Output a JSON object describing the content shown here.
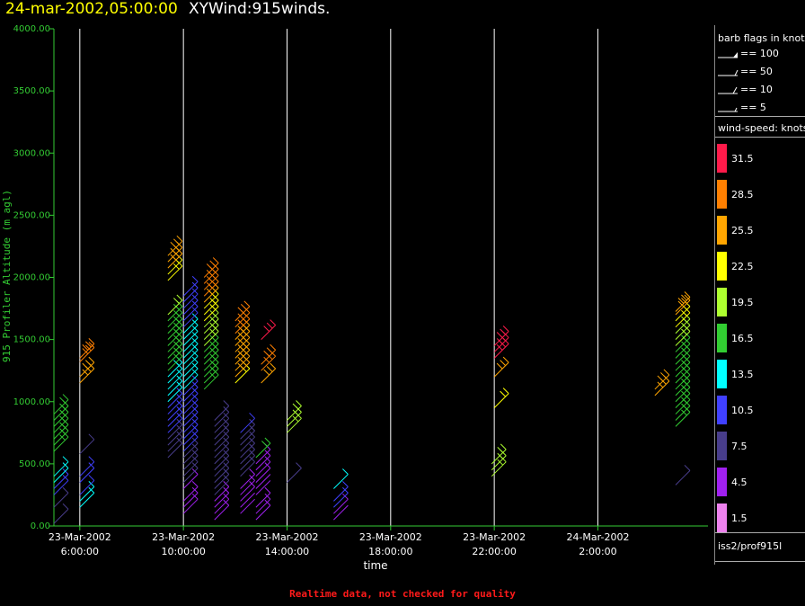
{
  "header": {
    "date_title": "24-mar-2002,05:00:00",
    "plot_title": "XYWind:915winds."
  },
  "legend": {
    "barb_title": "barb flags in knots",
    "barb_items": [
      "== 100",
      "== 50",
      "== 10",
      "== 5"
    ],
    "speed_title": "wind-speed: knots",
    "source_label": "iss2/prof915l"
  },
  "footer": {
    "note": "Realtime data, not checked for quality"
  },
  "colors": {
    "axis": "#33cc33",
    "grid": "#ffffff",
    "text": "#ffffff",
    "title_date": "#ffff00",
    "note": "#ff1a1a"
  },
  "chart_data": {
    "type": "wind-barb time-height",
    "ylabel": "915 Profiler Altitude (m agl)",
    "xlabel": "time",
    "ylim": [
      0,
      4000
    ],
    "yticks": [
      "0.00",
      "500.00",
      "1000.00",
      "1500.00",
      "2000.00",
      "2500.00",
      "3000.00",
      "3500.00",
      "4000.00"
    ],
    "xticks": [
      {
        "hour": 6,
        "date": "23-Mar-2002",
        "time": "6:00:00"
      },
      {
        "hour": 10,
        "date": "23-Mar-2002",
        "time": "10:00:00"
      },
      {
        "hour": 14,
        "date": "23-Mar-2002",
        "time": "14:00:00"
      },
      {
        "hour": 18,
        "date": "23-Mar-2002",
        "time": "18:00:00"
      },
      {
        "hour": 22,
        "date": "23-Mar-2002",
        "time": "22:00:00"
      },
      {
        "hour": 26,
        "date": "24-Mar-2002",
        "time": "2:00:00"
      }
    ],
    "xlim_hours": [
      5.0,
      30.25
    ],
    "color_scale": [
      {
        "label": "1.5",
        "color": "#ee82ee"
      },
      {
        "label": "4.5",
        "color": "#a020f0"
      },
      {
        "label": "7.5",
        "color": "#483d8b"
      },
      {
        "label": "10.5",
        "color": "#4040ff"
      },
      {
        "label": "13.5",
        "color": "#00ffff"
      },
      {
        "label": "16.5",
        "color": "#32cd32"
      },
      {
        "label": "19.5",
        "color": "#adff2f"
      },
      {
        "label": "22.5",
        "color": "#ffff00"
      },
      {
        "label": "25.5",
        "color": "#ffa500"
      },
      {
        "label": "28.5",
        "color": "#ff7f00"
      },
      {
        "label": "31.5",
        "color": "#ff1a4a"
      }
    ],
    "profiles": [
      {
        "hour": 5.0,
        "rows": [
          [
            20,
            7
          ],
          [
            150,
            8
          ],
          [
            250,
            12
          ],
          [
            300,
            12
          ],
          [
            350,
            13
          ],
          [
            400,
            13
          ],
          [
            600,
            17
          ],
          [
            650,
            17
          ],
          [
            700,
            18
          ],
          [
            750,
            18
          ],
          [
            800,
            18
          ],
          [
            850,
            18
          ],
          [
            900,
            18
          ]
        ]
      },
      {
        "hour": 6.0,
        "rows": [
          [
            150,
            14
          ],
          [
            200,
            13
          ],
          [
            250,
            12
          ],
          [
            350,
            12
          ],
          [
            400,
            12
          ],
          [
            580,
            9
          ],
          [
            1150,
            27
          ],
          [
            1200,
            27
          ],
          [
            1320,
            30
          ],
          [
            1350,
            30
          ]
        ]
      },
      {
        "hour": 9.4,
        "rows": [
          [
            550,
            7
          ],
          [
            600,
            8
          ],
          [
            650,
            9
          ],
          [
            700,
            9
          ],
          [
            750,
            10
          ],
          [
            800,
            11
          ],
          [
            850,
            11
          ],
          [
            900,
            11
          ],
          [
            950,
            12
          ],
          [
            1000,
            13
          ],
          [
            1050,
            13
          ],
          [
            1100,
            14
          ],
          [
            1150,
            14
          ],
          [
            1200,
            15
          ],
          [
            1250,
            16
          ],
          [
            1300,
            16
          ],
          [
            1350,
            17
          ],
          [
            1400,
            17
          ],
          [
            1450,
            17
          ],
          [
            1500,
            17
          ],
          [
            1550,
            17
          ],
          [
            1600,
            18
          ],
          [
            1650,
            18
          ],
          [
            1700,
            19
          ],
          [
            1975,
            23
          ],
          [
            2025,
            24
          ],
          [
            2075,
            25
          ],
          [
            2125,
            25
          ],
          [
            2175,
            25
          ]
        ]
      },
      {
        "hour": 10.0,
        "rows": [
          [
            100,
            5
          ],
          [
            150,
            5
          ],
          [
            200,
            6
          ],
          [
            300,
            6
          ],
          [
            350,
            7
          ],
          [
            400,
            8
          ],
          [
            450,
            8
          ],
          [
            500,
            9
          ],
          [
            550,
            9
          ],
          [
            600,
            10
          ],
          [
            650,
            10
          ],
          [
            700,
            11
          ],
          [
            750,
            11
          ],
          [
            800,
            11
          ],
          [
            850,
            11
          ],
          [
            900,
            12
          ],
          [
            950,
            12
          ],
          [
            1000,
            12
          ],
          [
            1050,
            12
          ],
          [
            1100,
            13
          ],
          [
            1150,
            13
          ],
          [
            1200,
            14
          ],
          [
            1250,
            14
          ],
          [
            1300,
            14
          ],
          [
            1350,
            14
          ],
          [
            1400,
            14
          ],
          [
            1450,
            14
          ],
          [
            1500,
            14
          ],
          [
            1550,
            13
          ],
          [
            1600,
            12
          ],
          [
            1650,
            12
          ],
          [
            1700,
            12
          ],
          [
            1750,
            11
          ],
          [
            1800,
            11
          ],
          [
            1850,
            10
          ]
        ]
      },
      {
        "hour": 10.8,
        "rows": [
          [
            1100,
            16
          ],
          [
            1150,
            16
          ],
          [
            1200,
            17
          ],
          [
            1250,
            17
          ],
          [
            1300,
            18
          ],
          [
            1350,
            18
          ],
          [
            1400,
            18
          ],
          [
            1450,
            19
          ],
          [
            1500,
            19
          ],
          [
            1550,
            20
          ],
          [
            1600,
            21
          ],
          [
            1650,
            22
          ],
          [
            1700,
            23
          ],
          [
            1750,
            24
          ],
          [
            1800,
            26
          ],
          [
            1850,
            28
          ],
          [
            1900,
            29
          ],
          [
            1950,
            28
          ],
          [
            2000,
            29
          ]
        ]
      },
      {
        "hour": 11.2,
        "rows": [
          [
            50,
            5
          ],
          [
            100,
            5
          ],
          [
            150,
            6
          ],
          [
            200,
            5
          ],
          [
            250,
            7
          ],
          [
            300,
            7
          ],
          [
            350,
            8
          ],
          [
            400,
            7
          ],
          [
            450,
            7
          ],
          [
            500,
            7
          ],
          [
            550,
            8
          ],
          [
            600,
            8
          ],
          [
            650,
            8
          ],
          [
            700,
            9
          ],
          [
            750,
            9
          ],
          [
            800,
            9
          ],
          [
            850,
            9
          ]
        ]
      },
      {
        "hour": 12.0,
        "rows": [
          [
            1150,
            24
          ],
          [
            1200,
            25
          ],
          [
            1250,
            25
          ],
          [
            1300,
            26
          ],
          [
            1350,
            26
          ],
          [
            1400,
            26
          ],
          [
            1450,
            27
          ],
          [
            1500,
            27
          ],
          [
            1550,
            28
          ],
          [
            1600,
            30
          ],
          [
            1650,
            30
          ]
        ]
      },
      {
        "hour": 12.2,
        "rows": [
          [
            100,
            4
          ],
          [
            150,
            4
          ],
          [
            200,
            5
          ],
          [
            250,
            6
          ],
          [
            300,
            6
          ],
          [
            400,
            7
          ],
          [
            450,
            8
          ],
          [
            500,
            8
          ],
          [
            550,
            9
          ],
          [
            600,
            9
          ],
          [
            650,
            9
          ],
          [
            700,
            9
          ],
          [
            750,
            10
          ]
        ]
      },
      {
        "hour": 12.8,
        "rows": [
          [
            50,
            5
          ],
          [
            100,
            5
          ],
          [
            150,
            5
          ],
          [
            250,
            4
          ],
          [
            300,
            4
          ],
          [
            350,
            5
          ],
          [
            400,
            5
          ],
          [
            450,
            5
          ],
          [
            500,
            5
          ],
          [
            550,
            16
          ]
        ]
      },
      {
        "hour": 13.0,
        "rows": [
          [
            1150,
            27
          ],
          [
            1250,
            28
          ],
          [
            1300,
            28
          ],
          [
            1500,
            31
          ]
        ]
      },
      {
        "hour": 14.0,
        "rows": [
          [
            350,
            7
          ],
          [
            750,
            19
          ],
          [
            800,
            19
          ],
          [
            850,
            20
          ]
        ]
      },
      {
        "hour": 15.8,
        "rows": [
          [
            50,
            4
          ],
          [
            100,
            5
          ],
          [
            150,
            10
          ],
          [
            200,
            11
          ],
          [
            300,
            13
          ]
        ]
      },
      {
        "hour": 21.9,
        "rows": [
          [
            400,
            20
          ],
          [
            450,
            20
          ],
          [
            500,
            20
          ]
        ]
      },
      {
        "hour": 22.0,
        "rows": [
          [
            950,
            22
          ],
          [
            1200,
            25
          ],
          [
            1350,
            31
          ],
          [
            1400,
            31
          ],
          [
            1450,
            31
          ]
        ]
      },
      {
        "hour": 28.2,
        "rows": [
          [
            1050,
            26
          ],
          [
            1100,
            26
          ]
        ]
      },
      {
        "hour": 29.0,
        "rows": [
          [
            330,
            7
          ],
          [
            800,
            17
          ],
          [
            850,
            17
          ],
          [
            900,
            17
          ],
          [
            950,
            17
          ],
          [
            1000,
            16
          ],
          [
            1050,
            16
          ],
          [
            1100,
            17
          ],
          [
            1150,
            17
          ],
          [
            1200,
            17
          ],
          [
            1250,
            17
          ],
          [
            1300,
            18
          ],
          [
            1350,
            18
          ],
          [
            1400,
            18
          ],
          [
            1450,
            19
          ],
          [
            1500,
            19
          ],
          [
            1550,
            20
          ],
          [
            1600,
            22
          ],
          [
            1650,
            24
          ],
          [
            1700,
            26
          ],
          [
            1725,
            27
          ]
        ]
      }
    ]
  }
}
